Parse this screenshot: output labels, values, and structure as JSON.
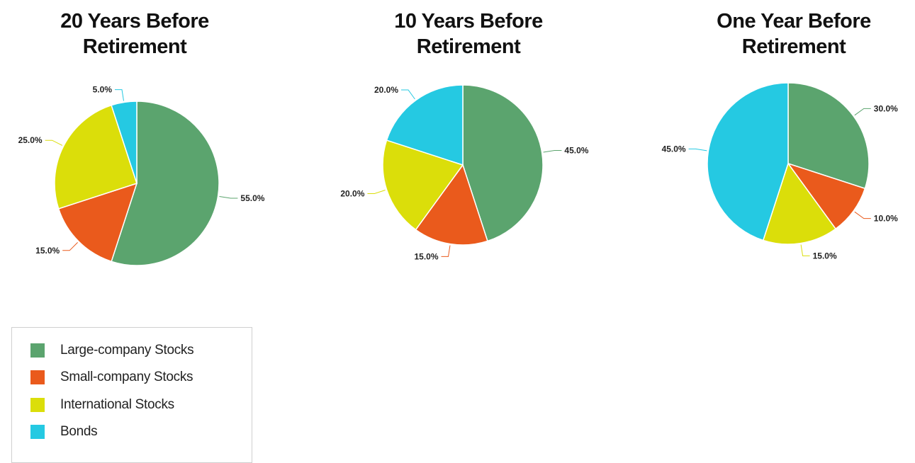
{
  "chart_data": [
    {
      "type": "pie",
      "title": "20 Years Before Retirement",
      "title_lines": [
        "20 Years Before",
        "Retirement"
      ],
      "categories": [
        "Large-company Stocks",
        "Small-company Stocks",
        "International Stocks",
        "Bonds"
      ],
      "values": [
        55.0,
        15.0,
        25.0,
        5.0
      ],
      "labels": [
        "55.0%",
        "15.0%",
        "25.0%",
        "5.0%"
      ]
    },
    {
      "type": "pie",
      "title": "10 Years Before Retirement",
      "title_lines": [
        "10 Years Before",
        "Retirement"
      ],
      "categories": [
        "Large-company Stocks",
        "Small-company Stocks",
        "International Stocks",
        "Bonds"
      ],
      "values": [
        45.0,
        15.0,
        20.0,
        20.0
      ],
      "labels": [
        "45.0%",
        "15.0%",
        "20.0%",
        "20.0%"
      ]
    },
    {
      "type": "pie",
      "title": "One Year Before Retirement",
      "title_lines": [
        "One Year Before",
        "Retirement"
      ],
      "categories": [
        "Large-company Stocks",
        "Small-company Stocks",
        "International Stocks",
        "Bonds"
      ],
      "values": [
        30.0,
        10.0,
        15.0,
        45.0
      ],
      "labels": [
        "30.0%",
        "10.0%",
        "15.0%",
        "45.0%"
      ]
    }
  ],
  "legend": {
    "placement": "bottom-left",
    "items": [
      {
        "label": "Large-company Stocks",
        "color": "#5ba46e"
      },
      {
        "label": "Small-company Stocks",
        "color": "#ea5a1c"
      },
      {
        "label": "International Stocks",
        "color": "#dbde0a"
      },
      {
        "label": "Bonds",
        "color": "#25c9e2"
      }
    ]
  },
  "colors": [
    "#5ba46e",
    "#ea5a1c",
    "#dbde0a",
    "#25c9e2"
  ]
}
